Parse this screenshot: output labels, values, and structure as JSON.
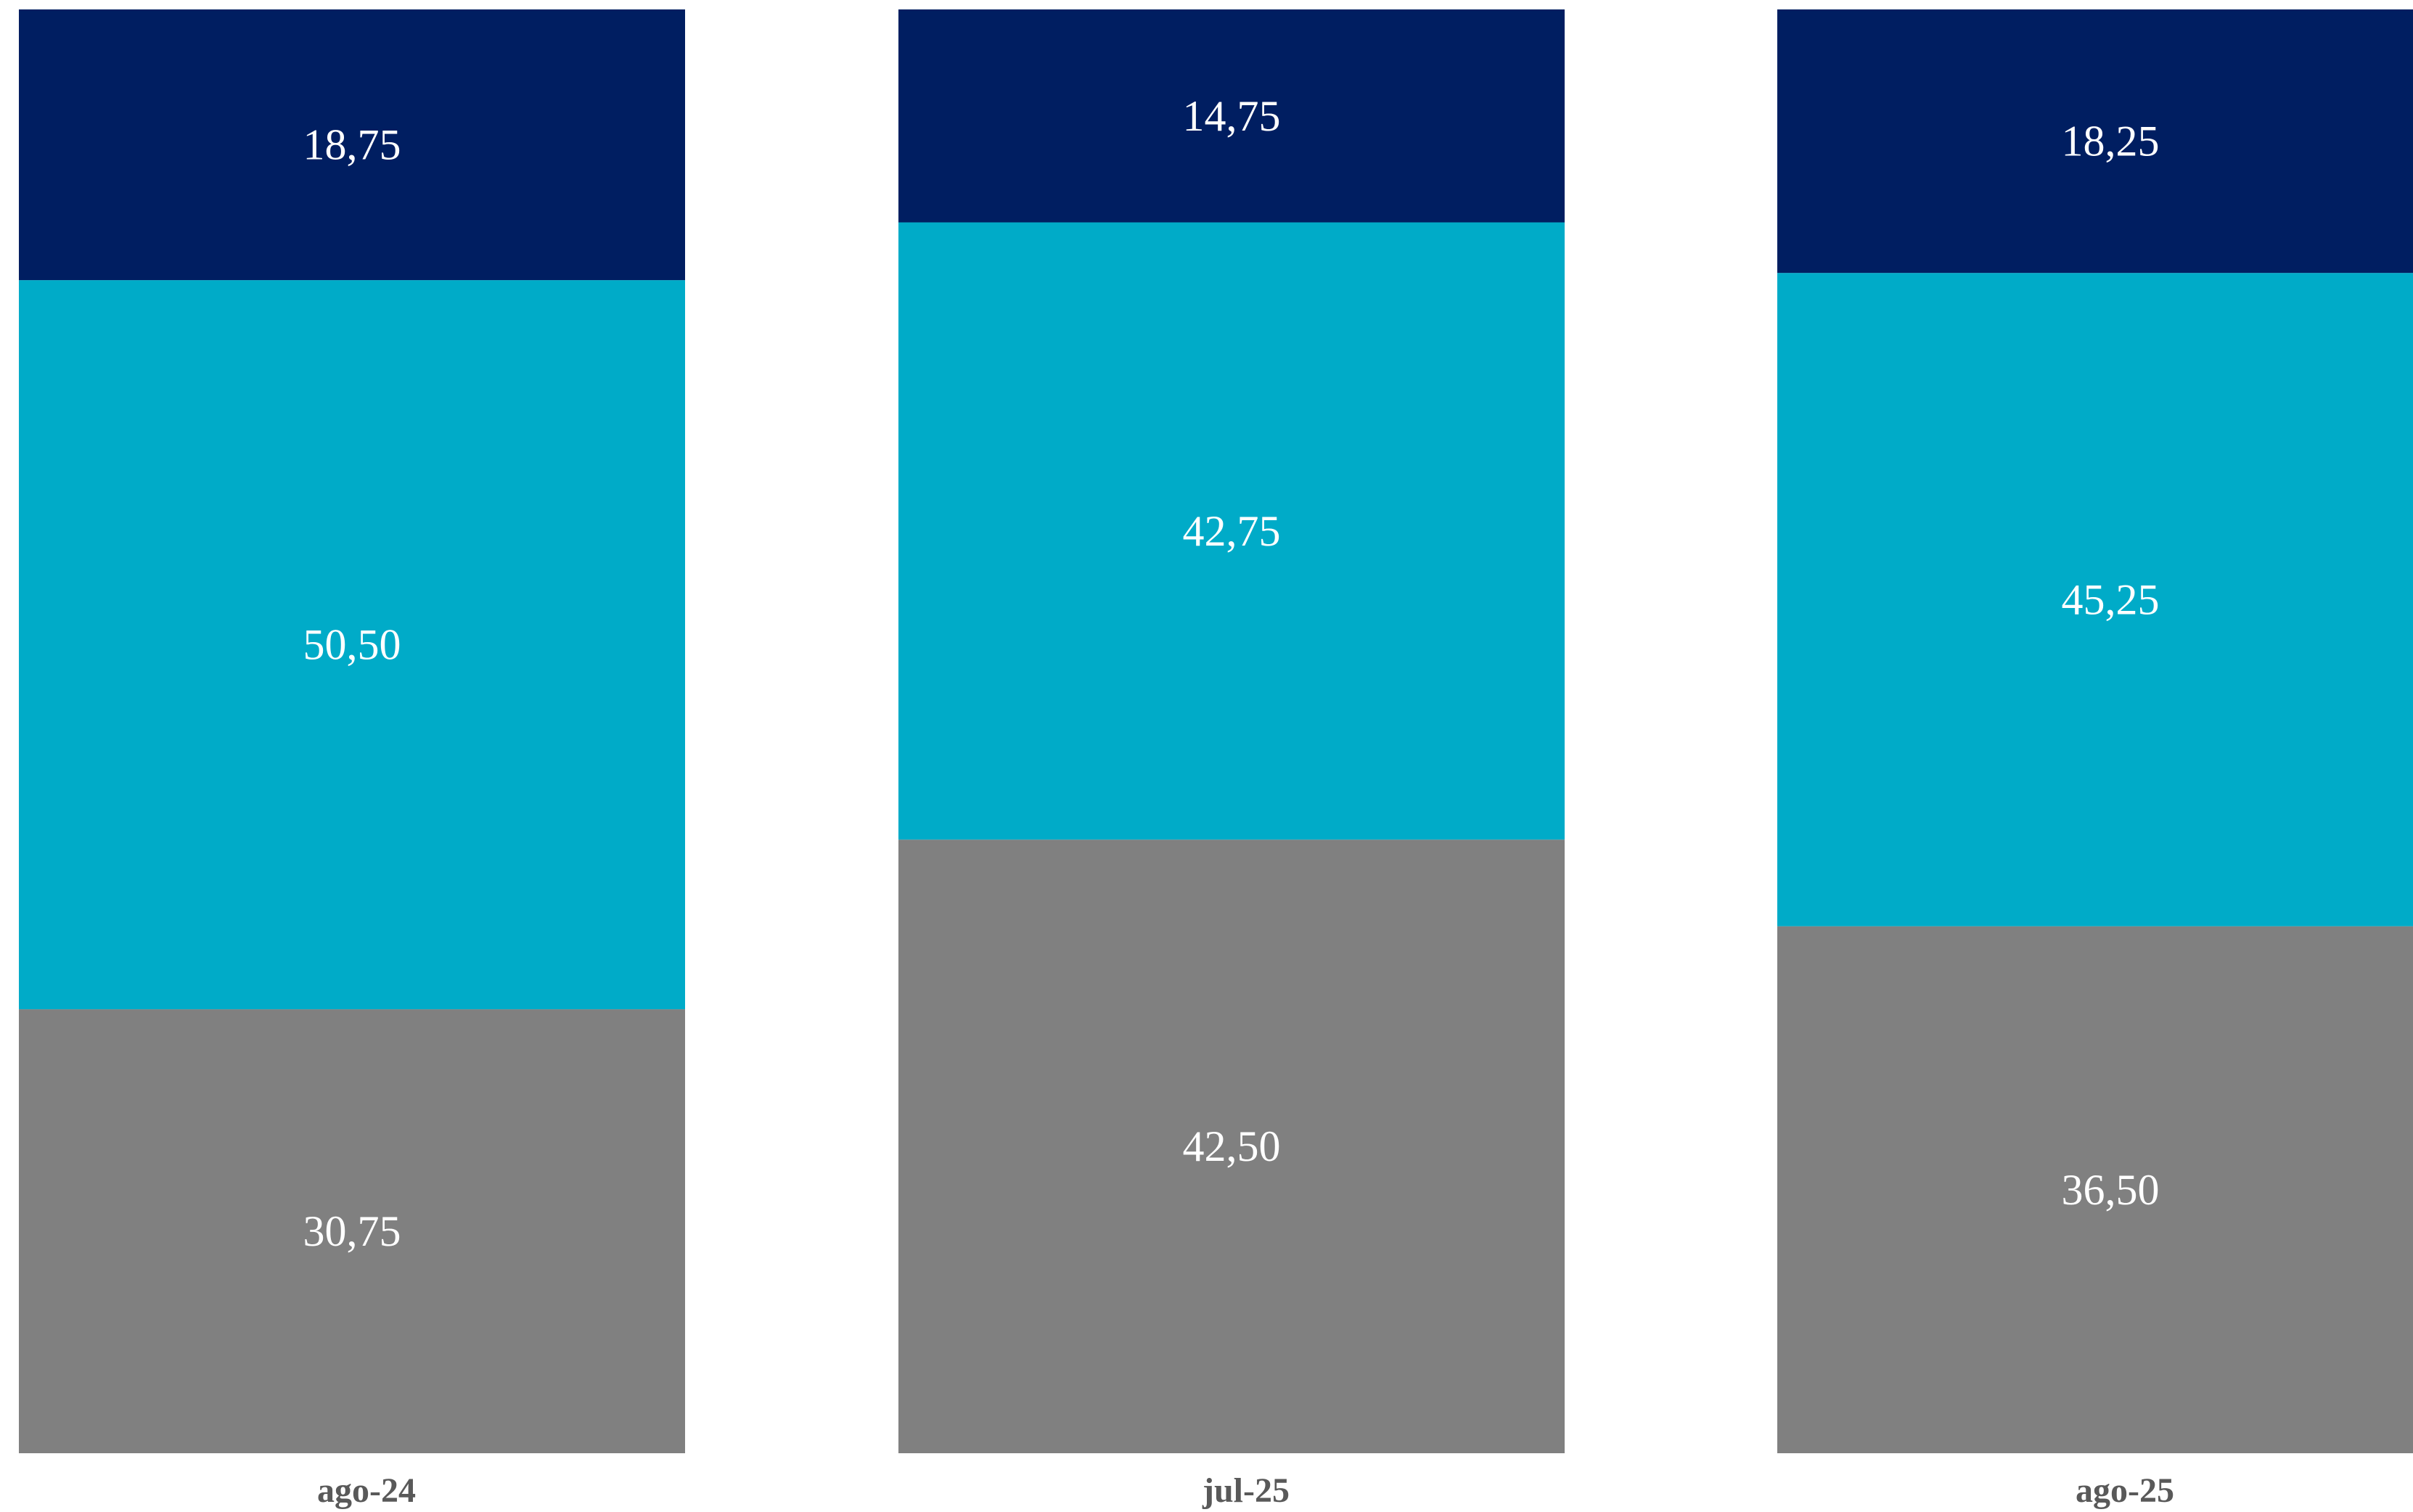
{
  "chart_data": {
    "type": "bar",
    "stacked": true,
    "stacked_total": 100,
    "categories": [
      "ago-24",
      "jul-25",
      "ago-25"
    ],
    "series": [
      {
        "color": "#808080",
        "values": [
          30.75,
          42.5,
          36.5
        ],
        "labels": [
          "30,75",
          "42,50",
          "36,50"
        ]
      },
      {
        "color": "#00ABC8",
        "values": [
          50.5,
          42.75,
          45.25
        ],
        "labels": [
          "50,50",
          "42,75",
          "45,25"
        ]
      },
      {
        "color": "#001E61",
        "values": [
          18.75,
          14.75,
          18.25
        ],
        "labels": [
          "18,75",
          "14,75",
          "18,25"
        ]
      }
    ],
    "title": "",
    "xlabel": "",
    "ylabel": "",
    "ylim": [
      0,
      100
    ],
    "grid": false,
    "legend": "none"
  }
}
